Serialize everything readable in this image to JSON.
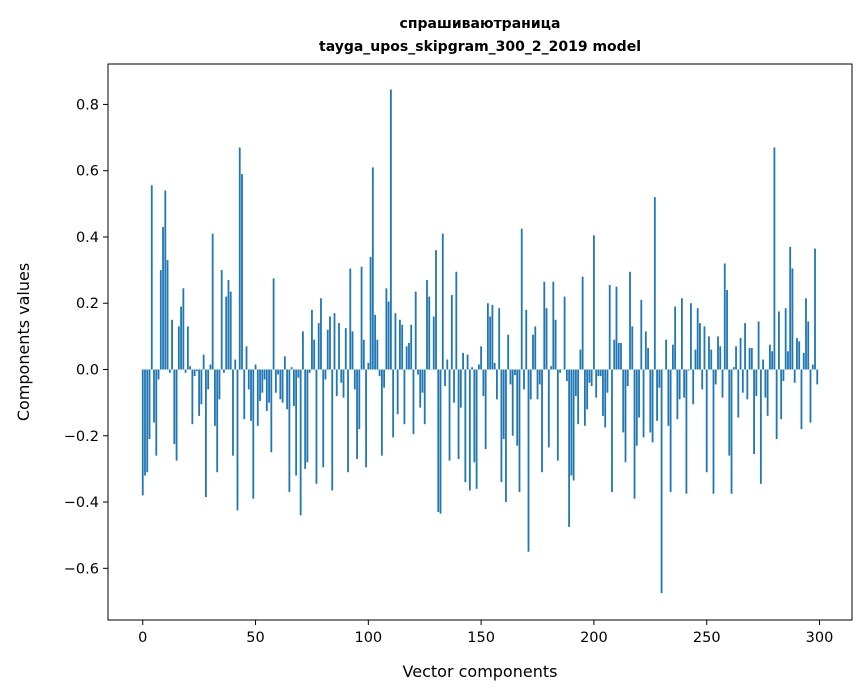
{
  "chart_data": {
    "type": "bar",
    "title": "спрашиваютраница",
    "subtitle": "tayga_upos_skipgram_300_2_2019 model",
    "xlabel": "Vector components",
    "ylabel": "Components values",
    "xlim": [
      -15.4,
      314.4
    ],
    "ylim": [
      -0.756,
      0.922
    ],
    "xticks": [
      0,
      50,
      100,
      150,
      200,
      250,
      300
    ],
    "xtick_labels": [
      "0",
      "50",
      "100",
      "150",
      "200",
      "250",
      "300"
    ],
    "yticks": [
      -0.6,
      -0.4,
      -0.2,
      0.0,
      0.2,
      0.4,
      0.6,
      0.8
    ],
    "ytick_labels": [
      "−0.6",
      "−0.4",
      "−0.2",
      "0.0",
      "0.2",
      "0.4",
      "0.6",
      "0.8"
    ],
    "grid": false,
    "bar_color": "#1f77b4",
    "values": [
      -0.38,
      -0.32,
      -0.31,
      -0.21,
      0.556,
      -0.16,
      -0.26,
      -0.03,
      0.3,
      0.43,
      0.54,
      0.33,
      -0.01,
      0.15,
      -0.225,
      -0.275,
      0.13,
      0.19,
      0.245,
      -0.01,
      0.13,
      0.01,
      -0.165,
      -0.02,
      -0.005,
      -0.14,
      -0.105,
      0.045,
      -0.385,
      -0.06,
      0.015,
      0.41,
      -0.17,
      -0.31,
      -0.09,
      0.3,
      -0.01,
      0.22,
      0.27,
      0.235,
      -0.26,
      0.03,
      -0.425,
      0.67,
      0.59,
      -0.15,
      0.07,
      -0.06,
      -0.155,
      -0.39,
      0.015,
      -0.17,
      -0.095,
      -0.07,
      -0.03,
      -0.125,
      -0.1,
      -0.25,
      0.275,
      -0.07,
      -0.015,
      -0.09,
      -0.1,
      0.04,
      -0.12,
      -0.37,
      0.007,
      -0.11,
      -0.32,
      -0.025,
      -0.44,
      0.115,
      -0.3,
      -0.28,
      -0.01,
      0.18,
      0.09,
      -0.345,
      0.14,
      0.215,
      -0.295,
      -0.03,
      0.12,
      0.16,
      -0.365,
      0.17,
      -0.08,
      0.14,
      -0.04,
      -0.085,
      0.125,
      -0.31,
      0.305,
      0.115,
      -0.06,
      -0.27,
      -0.18,
      0.31,
      0.09,
      -0.295,
      0.02,
      0.34,
      0.61,
      0.165,
      0.09,
      -0.02,
      -0.26,
      -0.055,
      0.245,
      0.205,
      0.845,
      -0.205,
      0.17,
      -0.135,
      0.15,
      0.135,
      -0.165,
      0.07,
      0.08,
      0.135,
      -0.195,
      0.235,
      -0.015,
      -0.115,
      -0.07,
      -0.165,
      0.27,
      0.22,
      0.0,
      0.16,
      0.36,
      -0.43,
      -0.435,
      0.41,
      -0.05,
      0.03,
      -0.275,
      0.225,
      -0.1,
      0.295,
      -0.27,
      -0.115,
      0.05,
      -0.34,
      0.045,
      -0.365,
      0.007,
      -0.28,
      -0.36,
      0.015,
      0.07,
      -0.08,
      -0.24,
      0.2,
      0.16,
      0.195,
      0.02,
      -0.09,
      0.185,
      -0.34,
      -0.21,
      -0.4,
      0.105,
      -0.045,
      -0.2,
      -0.017,
      -0.23,
      -0.37,
      0.425,
      -0.06,
      0.18,
      -0.55,
      -0.09,
      0.105,
      0.13,
      -0.09,
      -0.045,
      -0.31,
      0.265,
      0.185,
      -0.235,
      0.01,
      0.265,
      0.15,
      -0.275,
      -0.01,
      0.0,
      0.22,
      -0.035,
      -0.475,
      -0.32,
      -0.335,
      -0.08,
      -0.165,
      0.06,
      0.28,
      -0.17,
      -0.12,
      -0.04,
      -0.05,
      0.405,
      -0.085,
      -0.02,
      -0.02,
      -0.14,
      -0.175,
      -0.07,
      0.255,
      -0.37,
      0.09,
      0.25,
      0.08,
      0.08,
      -0.19,
      -0.28,
      -0.05,
      0.295,
      0.13,
      -0.39,
      -0.23,
      -0.145,
      0.21,
      -0.205,
      0.115,
      0.065,
      -0.19,
      -0.22,
      0.52,
      -0.155,
      -0.055,
      -0.675,
      0.0,
      0.09,
      -0.17,
      -0.37,
      0.075,
      0.19,
      -0.15,
      -0.09,
      0.215,
      -0.085,
      -0.375,
      -0.003,
      0.2,
      -0.105,
      0.06,
      0.185,
      0.14,
      -0.06,
      0.13,
      -0.31,
      0.1,
      0.06,
      -0.375,
      -0.045,
      0.1,
      0.07,
      -0.085,
      0.32,
      0.24,
      -0.26,
      -0.375,
      0.007,
      0.07,
      -0.145,
      0.095,
      -0.07,
      0.14,
      -0.09,
      0.065,
      0.065,
      -0.255,
      -0.08,
      0.145,
      -0.345,
      0.03,
      -0.085,
      -0.14,
      0.075,
      0.055,
      0.67,
      -0.21,
      0.175,
      -0.15,
      -0.035,
      0.185,
      0.055,
      0.37,
      0.305,
      -0.04,
      0.095,
      0.085,
      -0.18,
      0.05,
      0.215,
      0.145,
      -0.16,
      0.015,
      0.365,
      -0.045
    ]
  }
}
